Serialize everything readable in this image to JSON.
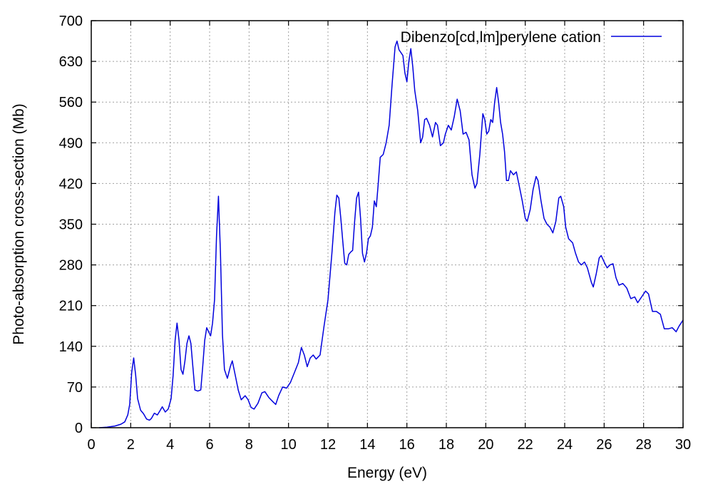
{
  "chart_data": {
    "type": "line",
    "title": "",
    "xlabel": "Energy (eV)",
    "ylabel": "Photo-absorption cross-section (Mb)",
    "xlim": [
      0,
      30
    ],
    "ylim": [
      0,
      700
    ],
    "xticks": [
      0,
      2,
      4,
      6,
      8,
      10,
      12,
      14,
      16,
      18,
      20,
      22,
      24,
      26,
      28,
      30
    ],
    "yticks": [
      0,
      70,
      140,
      210,
      280,
      350,
      420,
      490,
      560,
      630,
      700
    ],
    "grid": true,
    "legend_position": "top-right",
    "series": [
      {
        "name": "Dibenzo[cd,lm]perylene cation",
        "color": "#0000dd",
        "points": [
          [
            0.4,
            0
          ],
          [
            0.8,
            1
          ],
          [
            1.2,
            3
          ],
          [
            1.5,
            6
          ],
          [
            1.7,
            10
          ],
          [
            1.85,
            22
          ],
          [
            1.95,
            40
          ],
          [
            2.05,
            95
          ],
          [
            2.15,
            120
          ],
          [
            2.25,
            90
          ],
          [
            2.35,
            50
          ],
          [
            2.5,
            30
          ],
          [
            2.65,
            24
          ],
          [
            2.8,
            15
          ],
          [
            2.95,
            13
          ],
          [
            3.05,
            16
          ],
          [
            3.2,
            25
          ],
          [
            3.35,
            22
          ],
          [
            3.5,
            30
          ],
          [
            3.6,
            36
          ],
          [
            3.75,
            27
          ],
          [
            3.9,
            32
          ],
          [
            4.05,
            50
          ],
          [
            4.15,
            90
          ],
          [
            4.25,
            150
          ],
          [
            4.35,
            180
          ],
          [
            4.45,
            150
          ],
          [
            4.55,
            100
          ],
          [
            4.65,
            92
          ],
          [
            4.75,
            115
          ],
          [
            4.85,
            145
          ],
          [
            4.95,
            158
          ],
          [
            5.05,
            145
          ],
          [
            5.15,
            105
          ],
          [
            5.25,
            65
          ],
          [
            5.4,
            63
          ],
          [
            5.55,
            65
          ],
          [
            5.65,
            105
          ],
          [
            5.75,
            150
          ],
          [
            5.85,
            172
          ],
          [
            5.95,
            165
          ],
          [
            6.05,
            158
          ],
          [
            6.15,
            180
          ],
          [
            6.25,
            220
          ],
          [
            6.35,
            330
          ],
          [
            6.45,
            398
          ],
          [
            6.55,
            300
          ],
          [
            6.65,
            160
          ],
          [
            6.75,
            100
          ],
          [
            6.9,
            85
          ],
          [
            7.05,
            105
          ],
          [
            7.15,
            115
          ],
          [
            7.3,
            90
          ],
          [
            7.45,
            65
          ],
          [
            7.6,
            48
          ],
          [
            7.8,
            55
          ],
          [
            7.95,
            48
          ],
          [
            8.1,
            35
          ],
          [
            8.25,
            32
          ],
          [
            8.45,
            42
          ],
          [
            8.65,
            60
          ],
          [
            8.8,
            62
          ],
          [
            9.0,
            52
          ],
          [
            9.2,
            45
          ],
          [
            9.35,
            40
          ],
          [
            9.5,
            55
          ],
          [
            9.7,
            70
          ],
          [
            9.9,
            68
          ],
          [
            10.1,
            78
          ],
          [
            10.3,
            95
          ],
          [
            10.5,
            112
          ],
          [
            10.65,
            138
          ],
          [
            10.8,
            125
          ],
          [
            10.95,
            105
          ],
          [
            11.1,
            120
          ],
          [
            11.25,
            125
          ],
          [
            11.4,
            118
          ],
          [
            11.6,
            125
          ],
          [
            11.8,
            175
          ],
          [
            12.0,
            220
          ],
          [
            12.2,
            300
          ],
          [
            12.35,
            370
          ],
          [
            12.45,
            400
          ],
          [
            12.55,
            395
          ],
          [
            12.65,
            360
          ],
          [
            12.75,
            320
          ],
          [
            12.85,
            283
          ],
          [
            12.95,
            280
          ],
          [
            13.05,
            298
          ],
          [
            13.15,
            302
          ],
          [
            13.25,
            305
          ],
          [
            13.35,
            355
          ],
          [
            13.45,
            395
          ],
          [
            13.55,
            405
          ],
          [
            13.65,
            360
          ],
          [
            13.75,
            300
          ],
          [
            13.85,
            285
          ],
          [
            13.95,
            300
          ],
          [
            14.05,
            325
          ],
          [
            14.15,
            330
          ],
          [
            14.25,
            345
          ],
          [
            14.35,
            390
          ],
          [
            14.45,
            380
          ],
          [
            14.55,
            420
          ],
          [
            14.65,
            465
          ],
          [
            14.8,
            470
          ],
          [
            14.95,
            490
          ],
          [
            15.1,
            520
          ],
          [
            15.25,
            590
          ],
          [
            15.4,
            655
          ],
          [
            15.5,
            665
          ],
          [
            15.6,
            650
          ],
          [
            15.7,
            645
          ],
          [
            15.8,
            640
          ],
          [
            15.9,
            610
          ],
          [
            16.0,
            595
          ],
          [
            16.1,
            630
          ],
          [
            16.2,
            652
          ],
          [
            16.3,
            620
          ],
          [
            16.4,
            580
          ],
          [
            16.55,
            545
          ],
          [
            16.7,
            490
          ],
          [
            16.8,
            500
          ],
          [
            16.9,
            530
          ],
          [
            17.0,
            532
          ],
          [
            17.15,
            520
          ],
          [
            17.3,
            500
          ],
          [
            17.45,
            525
          ],
          [
            17.55,
            520
          ],
          [
            17.7,
            485
          ],
          [
            17.85,
            490
          ],
          [
            17.95,
            505
          ],
          [
            18.1,
            520
          ],
          [
            18.25,
            512
          ],
          [
            18.4,
            535
          ],
          [
            18.55,
            565
          ],
          [
            18.7,
            545
          ],
          [
            18.85,
            505
          ],
          [
            19.0,
            508
          ],
          [
            19.15,
            495
          ],
          [
            19.3,
            435
          ],
          [
            19.45,
            412
          ],
          [
            19.55,
            420
          ],
          [
            19.7,
            470
          ],
          [
            19.85,
            540
          ],
          [
            19.95,
            530
          ],
          [
            20.05,
            505
          ],
          [
            20.15,
            510
          ],
          [
            20.25,
            530
          ],
          [
            20.35,
            525
          ],
          [
            20.45,
            560
          ],
          [
            20.55,
            585
          ],
          [
            20.65,
            560
          ],
          [
            20.75,
            525
          ],
          [
            20.85,
            505
          ],
          [
            20.95,
            475
          ],
          [
            21.05,
            425
          ],
          [
            21.15,
            425
          ],
          [
            21.25,
            442
          ],
          [
            21.4,
            435
          ],
          [
            21.55,
            440
          ],
          [
            21.7,
            415
          ],
          [
            21.85,
            390
          ],
          [
            22.0,
            360
          ],
          [
            22.1,
            355
          ],
          [
            22.25,
            375
          ],
          [
            22.4,
            410
          ],
          [
            22.55,
            432
          ],
          [
            22.65,
            425
          ],
          [
            22.8,
            390
          ],
          [
            22.95,
            360
          ],
          [
            23.1,
            350
          ],
          [
            23.25,
            345
          ],
          [
            23.4,
            335
          ],
          [
            23.55,
            355
          ],
          [
            23.7,
            395
          ],
          [
            23.8,
            398
          ],
          [
            23.95,
            380
          ],
          [
            24.05,
            345
          ],
          [
            24.2,
            325
          ],
          [
            24.4,
            318
          ],
          [
            24.55,
            300
          ],
          [
            24.7,
            285
          ],
          [
            24.85,
            280
          ],
          [
            25.0,
            285
          ],
          [
            25.15,
            275
          ],
          [
            25.35,
            250
          ],
          [
            25.45,
            242
          ],
          [
            25.6,
            265
          ],
          [
            25.75,
            292
          ],
          [
            25.85,
            296
          ],
          [
            26.0,
            285
          ],
          [
            26.15,
            275
          ],
          [
            26.3,
            280
          ],
          [
            26.45,
            282
          ],
          [
            26.6,
            258
          ],
          [
            26.75,
            245
          ],
          [
            26.95,
            248
          ],
          [
            27.15,
            240
          ],
          [
            27.35,
            222
          ],
          [
            27.55,
            225
          ],
          [
            27.7,
            215
          ],
          [
            27.9,
            225
          ],
          [
            28.1,
            235
          ],
          [
            28.25,
            230
          ],
          [
            28.45,
            200
          ],
          [
            28.65,
            200
          ],
          [
            28.85,
            195
          ],
          [
            29.05,
            170
          ],
          [
            29.25,
            170
          ],
          [
            29.45,
            172
          ],
          [
            29.65,
            165
          ],
          [
            29.8,
            175
          ],
          [
            30.0,
            185
          ]
        ]
      }
    ]
  }
}
